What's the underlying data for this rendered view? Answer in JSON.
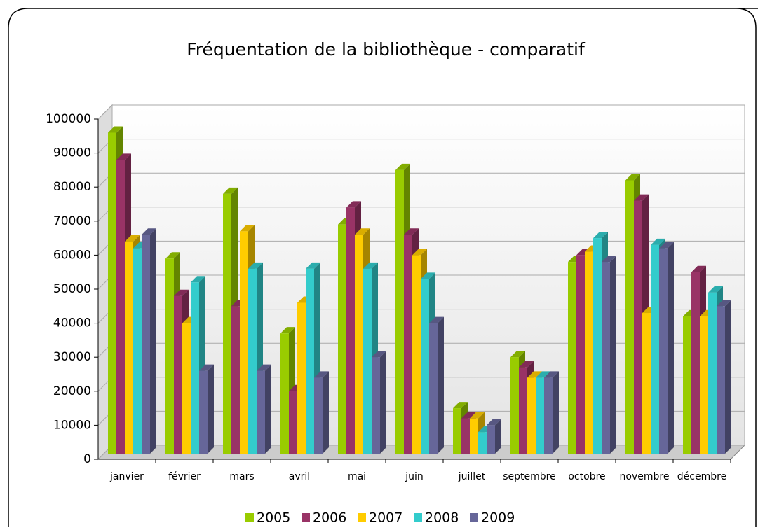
{
  "chart_data": {
    "type": "bar3d",
    "title": "Fréquentation de la bibliothèque - comparatif",
    "categories": [
      "janvier",
      "février",
      "mars",
      "avril",
      "mai",
      "juin",
      "juillet",
      "septembre",
      "octobre",
      "novembre",
      "décembre"
    ],
    "series": [
      {
        "name": "2005",
        "color": "#99cc00",
        "values": [
          96000,
          59000,
          78000,
          37000,
          69000,
          85000,
          15000,
          30000,
          58000,
          82000,
          42000
        ]
      },
      {
        "name": "2006",
        "color": "#993366",
        "values": [
          88000,
          48000,
          45000,
          20000,
          74000,
          66000,
          12000,
          27000,
          60000,
          76000,
          55000
        ]
      },
      {
        "name": "2007",
        "color": "#ffcc00",
        "values": [
          64000,
          40000,
          67000,
          46000,
          66000,
          60000,
          12000,
          24000,
          61000,
          43000,
          42000
        ]
      },
      {
        "name": "2008",
        "color": "#33cccc",
        "values": [
          62000,
          52000,
          56000,
          56000,
          56000,
          53000,
          8000,
          24000,
          65000,
          63000,
          49000
        ]
      },
      {
        "name": "2009",
        "color": "#666699",
        "values": [
          66000,
          26000,
          26000,
          24000,
          30000,
          40000,
          10000,
          24000,
          58000,
          62000,
          45000
        ]
      }
    ],
    "ylim": [
      0,
      100000
    ],
    "yticks": [
      0,
      10000,
      20000,
      30000,
      40000,
      50000,
      60000,
      70000,
      80000,
      90000,
      100000
    ],
    "grid": true,
    "legend": "bottom"
  }
}
